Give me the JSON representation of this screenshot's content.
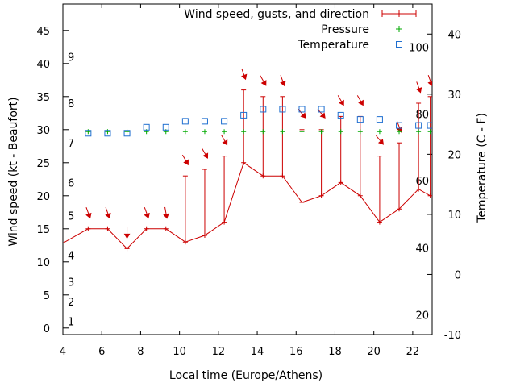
{
  "chart_data": {
    "type": "line",
    "xlabel": "Local time (Europe/Athens)",
    "ylabel_left": "Wind speed (kt - Beaufort)",
    "ylabel_right": "Temperature (C - F)",
    "xlim": [
      4,
      23
    ],
    "ylim_left": [
      -1,
      49
    ],
    "ylim_right": [
      -10,
      45
    ],
    "x_ticks": [
      "4",
      "6",
      "8",
      "10",
      "12",
      "14",
      "16",
      "18",
      "20",
      "22"
    ],
    "y_ticks_left": [
      "0",
      "5",
      "10",
      "15",
      "20",
      "25",
      "30",
      "35",
      "40",
      "45"
    ],
    "y_ticks_right": [
      "-10",
      "0",
      "10",
      "20",
      "30",
      "40"
    ],
    "beaufort_labels": [
      {
        "label": "1",
        "kt": 1
      },
      {
        "label": "2",
        "kt": 4
      },
      {
        "label": "3",
        "kt": 7
      },
      {
        "label": "4",
        "kt": 11
      },
      {
        "label": "5",
        "kt": 17
      },
      {
        "label": "6",
        "kt": 22
      },
      {
        "label": "7",
        "kt": 28
      },
      {
        "label": "8",
        "kt": 34
      },
      {
        "label": "9",
        "kt": 41
      }
    ],
    "fahrenheit_labels": [
      {
        "label": "20",
        "c": -6.7
      },
      {
        "label": "40",
        "c": 4.4
      },
      {
        "label": "60",
        "c": 15.6
      },
      {
        "label": "80",
        "c": 26.7
      },
      {
        "label": "100",
        "c": 37.8
      }
    ],
    "legend": {
      "wind": "Wind speed, gusts, and direction",
      "pressure": "Pressure",
      "temperature": "Temperature"
    },
    "colors": {
      "wind": "#cc0000",
      "pressure": "#00aa00",
      "temperature": "#1f6fd0"
    },
    "wind": [
      {
        "x": 3.5,
        "speed": 12,
        "gust": null,
        "dir": null
      },
      {
        "x": 5.3,
        "speed": 15,
        "gust": null,
        "dir": 340
      },
      {
        "x": 6.3,
        "speed": 15,
        "gust": null,
        "dir": 340
      },
      {
        "x": 7.3,
        "speed": 12,
        "gust": null,
        "dir": 0
      },
      {
        "x": 8.3,
        "speed": 15,
        "gust": null,
        "dir": 340
      },
      {
        "x": 9.3,
        "speed": 15,
        "gust": null,
        "dir": 350
      },
      {
        "x": 10.3,
        "speed": 13,
        "gust": 23,
        "dir": 330
      },
      {
        "x": 11.3,
        "speed": 14,
        "gust": 24,
        "dir": 330
      },
      {
        "x": 12.3,
        "speed": 16,
        "gust": 26,
        "dir": 330
      },
      {
        "x": 13.3,
        "speed": 25,
        "gust": 36,
        "dir": 340
      },
      {
        "x": 14.3,
        "speed": 23,
        "gust": 35,
        "dir": 330
      },
      {
        "x": 15.3,
        "speed": 23,
        "gust": 35,
        "dir": 340
      },
      {
        "x": 16.3,
        "speed": 19,
        "gust": 30,
        "dir": 320
      },
      {
        "x": 17.3,
        "speed": 20,
        "gust": 30,
        "dir": 320
      },
      {
        "x": 18.3,
        "speed": 22,
        "gust": 32,
        "dir": 330
      },
      {
        "x": 19.3,
        "speed": 20,
        "gust": 32,
        "dir": 330
      },
      {
        "x": 20.3,
        "speed": 16,
        "gust": 26,
        "dir": 320
      },
      {
        "x": 21.3,
        "speed": 18,
        "gust": 28,
        "dir": 340
      },
      {
        "x": 22.3,
        "speed": 21,
        "gust": 34,
        "dir": 340
      },
      {
        "x": 22.9,
        "speed": 20,
        "gust": 35,
        "dir": 340
      }
    ],
    "pressure": [
      {
        "x": 5.3,
        "kt_scale": 29.7
      },
      {
        "x": 6.3,
        "kt_scale": 29.7
      },
      {
        "x": 7.3,
        "kt_scale": 29.7
      },
      {
        "x": 8.3,
        "kt_scale": 29.7
      },
      {
        "x": 9.3,
        "kt_scale": 29.7
      },
      {
        "x": 10.3,
        "kt_scale": 29.7
      },
      {
        "x": 11.3,
        "kt_scale": 29.7
      },
      {
        "x": 12.3,
        "kt_scale": 29.7
      },
      {
        "x": 13.3,
        "kt_scale": 29.7
      },
      {
        "x": 14.3,
        "kt_scale": 29.7
      },
      {
        "x": 15.3,
        "kt_scale": 29.7
      },
      {
        "x": 16.3,
        "kt_scale": 29.7
      },
      {
        "x": 17.3,
        "kt_scale": 29.7
      },
      {
        "x": 18.3,
        "kt_scale": 29.7
      },
      {
        "x": 19.3,
        "kt_scale": 29.7
      },
      {
        "x": 20.3,
        "kt_scale": 29.7
      },
      {
        "x": 21.3,
        "kt_scale": 29.7
      },
      {
        "x": 22.3,
        "kt_scale": 29.7
      },
      {
        "x": 22.9,
        "kt_scale": 29.7
      }
    ],
    "temperature": [
      {
        "x": 5.3,
        "c": 23.5
      },
      {
        "x": 6.3,
        "c": 23.5
      },
      {
        "x": 7.3,
        "c": 23.5
      },
      {
        "x": 8.3,
        "c": 24.5
      },
      {
        "x": 9.3,
        "c": 24.5
      },
      {
        "x": 10.3,
        "c": 25.5
      },
      {
        "x": 11.3,
        "c": 25.5
      },
      {
        "x": 12.3,
        "c": 25.5
      },
      {
        "x": 13.3,
        "c": 26.5
      },
      {
        "x": 14.3,
        "c": 27.5
      },
      {
        "x": 15.3,
        "c": 27.5
      },
      {
        "x": 16.3,
        "c": 27.5
      },
      {
        "x": 17.3,
        "c": 27.5
      },
      {
        "x": 18.3,
        "c": 26.5
      },
      {
        "x": 19.3,
        "c": 25.8
      },
      {
        "x": 20.3,
        "c": 25.8
      },
      {
        "x": 21.3,
        "c": 24.8
      },
      {
        "x": 22.3,
        "c": 24.8
      },
      {
        "x": 22.9,
        "c": 24.8
      }
    ]
  }
}
